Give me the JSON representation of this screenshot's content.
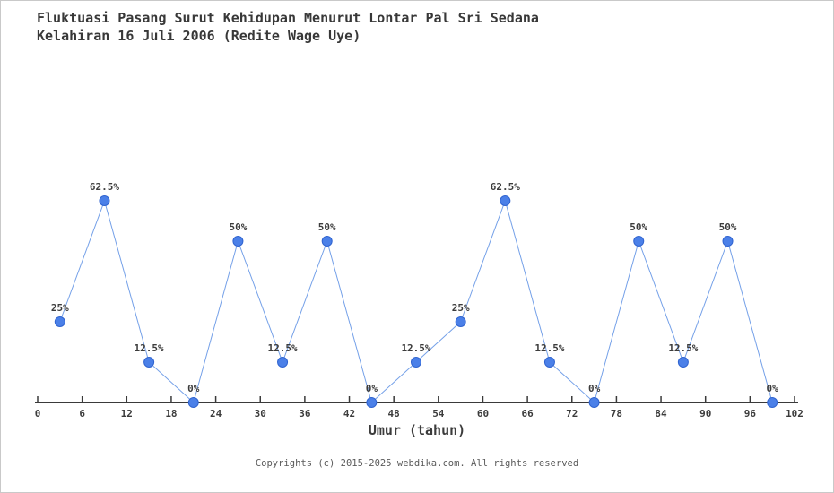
{
  "header": {
    "title_line1": "Fluktuasi Pasang Surut Kehidupan Menurut Lontar Pal Sri Sedana",
    "title_line2": "Kelahiran 16 Juli 2006 (Redite Wage Uye)"
  },
  "chart_data": {
    "type": "line",
    "title": "Fluktuasi Pasang Surut Kehidupan Menurut Lontar Pal Sri Sedana Kelahiran 16 Juli 2006 (Redite Wage Uye)",
    "xlabel": "Umur (tahun)",
    "ylabel": "",
    "x": [
      3,
      9,
      15,
      21,
      27,
      33,
      39,
      45,
      51,
      57,
      63,
      69,
      75,
      81,
      87,
      93,
      99
    ],
    "values": [
      25,
      62.5,
      12.5,
      0,
      50,
      12.5,
      50,
      0,
      12.5,
      25,
      62.5,
      12.5,
      0,
      50,
      12.5,
      50,
      0
    ],
    "point_labels": [
      "25%",
      "62.5%",
      "12.5%",
      "0%",
      "50%",
      "12.5%",
      "50%",
      "0%",
      "12.5%",
      "25%",
      "62.5%",
      "12.5%",
      "0%",
      "50%",
      "12.5%",
      "50%",
      "0%"
    ],
    "x_ticks": [
      0,
      6,
      12,
      18,
      24,
      30,
      36,
      42,
      48,
      54,
      60,
      66,
      72,
      78,
      84,
      90,
      96,
      102
    ],
    "xlim": [
      0,
      102
    ],
    "ylim": [
      0,
      70
    ],
    "grid": false,
    "legend": "none",
    "colors": {
      "point_fill": "#4b80e8",
      "point_stroke": "#3064d0",
      "line": "#74a0e8",
      "axis": "#3a3a3a",
      "text": "#3c3c3c"
    }
  },
  "footer": {
    "copyright": "Copyrights (c) 2015-2025 webdika.com. All rights reserved"
  }
}
